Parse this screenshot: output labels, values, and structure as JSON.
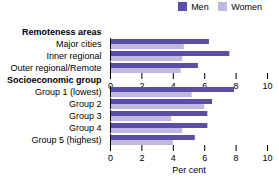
{
  "chart_data": {
    "type": "bar",
    "orientation": "horizontal",
    "categories": [
      "Remoteness areas",
      "Major cities",
      "Inner regional",
      "Outer regional/Remote",
      "Socioeconomic group",
      "Group 1 (lowest)",
      "Group 2",
      "Group 3",
      "Group 4",
      "Group 5 (highest)"
    ],
    "series": [
      {
        "name": "Men",
        "color": "#5b4ea8",
        "values": [
          null,
          6.3,
          7.6,
          5.6,
          null,
          7.9,
          6.5,
          6.2,
          6.2,
          5.4
        ]
      },
      {
        "name": "Women",
        "color": "#c2b8df",
        "values": [
          null,
          4.7,
          4.6,
          4.5,
          null,
          5.2,
          6.0,
          3.9,
          4.6,
          4.0
        ]
      }
    ],
    "xlabel": "Per cent",
    "xlim": [
      0,
      10
    ],
    "xticks": [
      0,
      2,
      4,
      6,
      8,
      10
    ],
    "grid": false,
    "legend": "upper right"
  }
}
